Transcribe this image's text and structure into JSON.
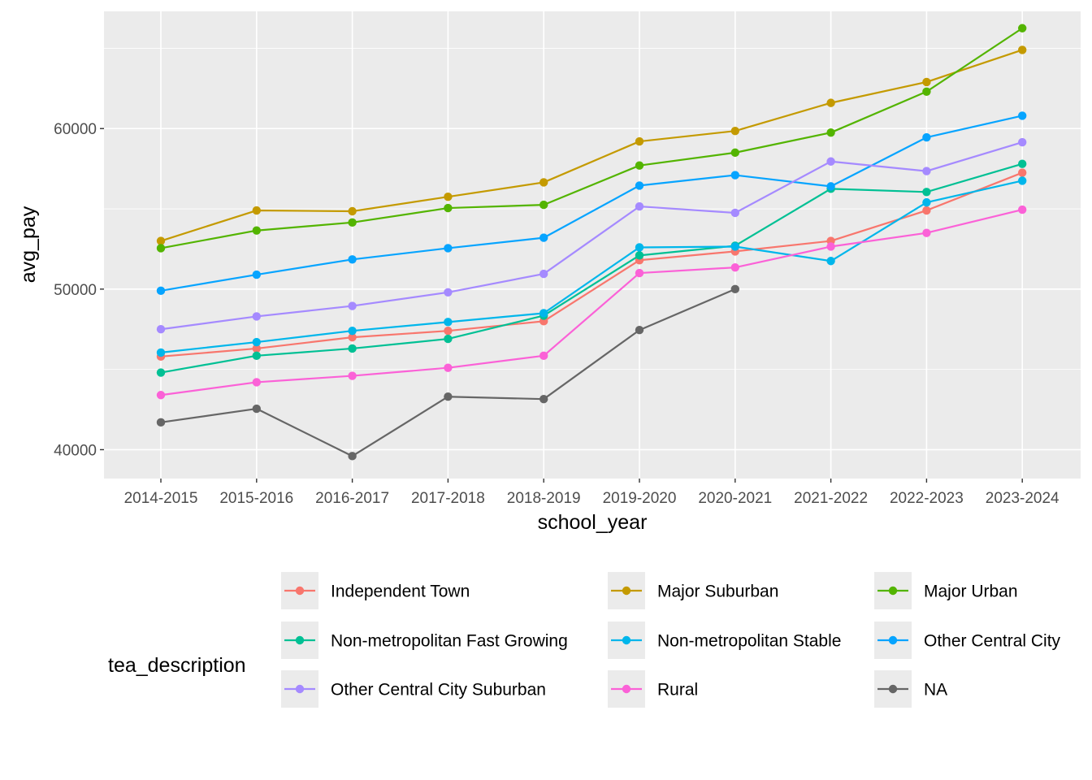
{
  "chart_data": {
    "type": "line",
    "xlabel": "school_year",
    "ylabel": "avg_pay",
    "categories": [
      "2014-2015",
      "2015-2016",
      "2016-2017",
      "2017-2018",
      "2018-2019",
      "2019-2020",
      "2020-2021",
      "2021-2022",
      "2022-2023",
      "2023-2024"
    ],
    "ylim": [
      38200,
      67300
    ],
    "y_ticks": [
      40000,
      50000,
      60000
    ],
    "y_tick_labels": [
      "40000",
      "50000",
      "60000"
    ],
    "grid": true,
    "legend": {
      "title": "tea_description",
      "placement": "bottom"
    },
    "series": [
      {
        "name": "Independent Town",
        "color": "#F8766D",
        "values": [
          45800,
          46300,
          47000,
          47400,
          48000,
          51800,
          52350,
          53000,
          54900,
          57250
        ]
      },
      {
        "name": "Major Suburban",
        "color": "#C49A00",
        "values": [
          53000,
          54900,
          54850,
          55750,
          56650,
          59200,
          59850,
          61600,
          62900,
          64900
        ]
      },
      {
        "name": "Major Urban",
        "color": "#53B400",
        "values": [
          52550,
          53650,
          54150,
          55050,
          55250,
          57700,
          58500,
          59750,
          62300,
          66250
        ]
      },
      {
        "name": "Non-metropolitan Fast Growing",
        "color": "#00C094",
        "values": [
          44800,
          45850,
          46300,
          46900,
          48350,
          52100,
          52700,
          56250,
          56050,
          57800
        ]
      },
      {
        "name": "Non-metropolitan Stable",
        "color": "#00B6EB",
        "values": [
          46050,
          46700,
          47400,
          47950,
          48500,
          52600,
          52650,
          51750,
          55400,
          56750
        ]
      },
      {
        "name": "Other Central City",
        "color": "#06A4FF",
        "values": [
          49900,
          50900,
          51850,
          52550,
          53200,
          56450,
          57100,
          56400,
          59450,
          60800
        ]
      },
      {
        "name": "Other Central City Suburban",
        "color": "#A58AFF",
        "values": [
          47500,
          48300,
          48950,
          49800,
          50950,
          55150,
          54750,
          57950,
          57350,
          59150
        ]
      },
      {
        "name": "Rural",
        "color": "#FB61D7",
        "values": [
          43400,
          44200,
          44600,
          45100,
          45850,
          51000,
          51350,
          52650,
          53500,
          54950
        ]
      },
      {
        "name": "NA",
        "color": "#666666",
        "values": [
          41700,
          42550,
          39600,
          43300,
          43150,
          47450,
          50000,
          null,
          null,
          null
        ]
      }
    ]
  }
}
